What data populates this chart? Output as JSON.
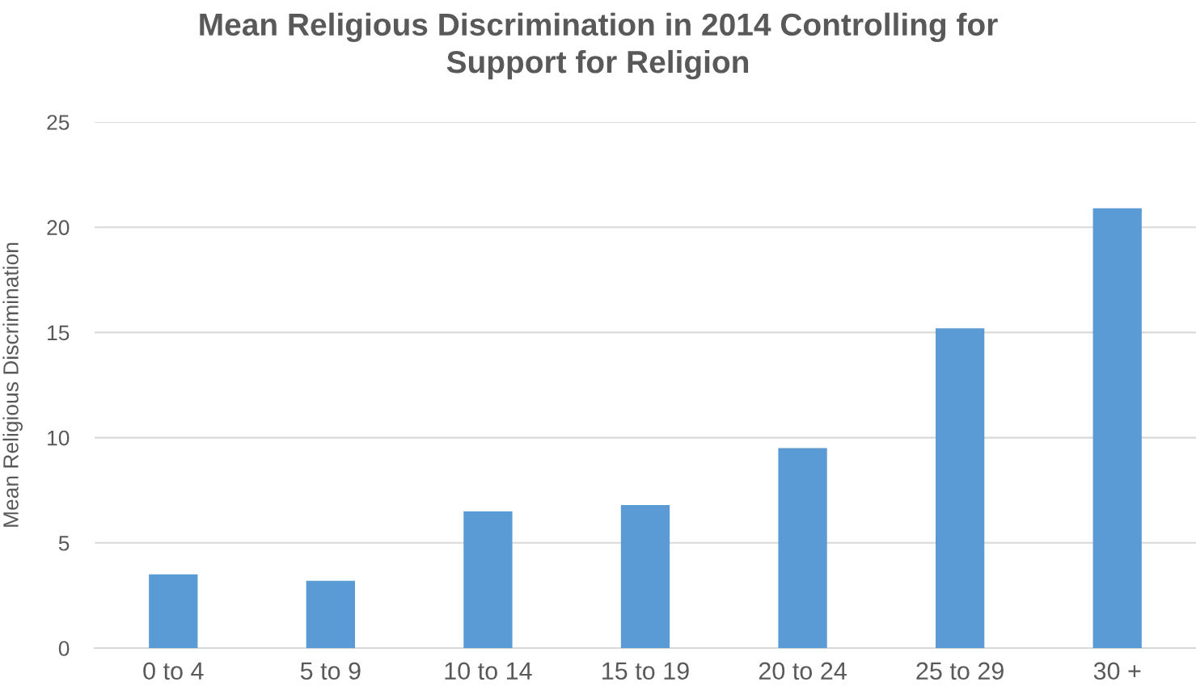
{
  "chart_data": {
    "type": "bar",
    "title": "Mean Religious Discrimination in 2014 Controlling for\nSupport for Religion",
    "ylabel": "Mean Religious Discrimination",
    "categories": [
      "0 to 4",
      "5 to 9",
      "10 to 14",
      "15 to 19",
      "20 to 24",
      "25 to 29",
      "30 +"
    ],
    "values": [
      3.5,
      3.2,
      6.5,
      6.8,
      9.5,
      15.2,
      20.9
    ],
    "color": "#5b9bd5",
    "ylim": [
      0,
      25
    ],
    "yticks": [
      0,
      5,
      10,
      15,
      20,
      25
    ],
    "grid": "y"
  }
}
